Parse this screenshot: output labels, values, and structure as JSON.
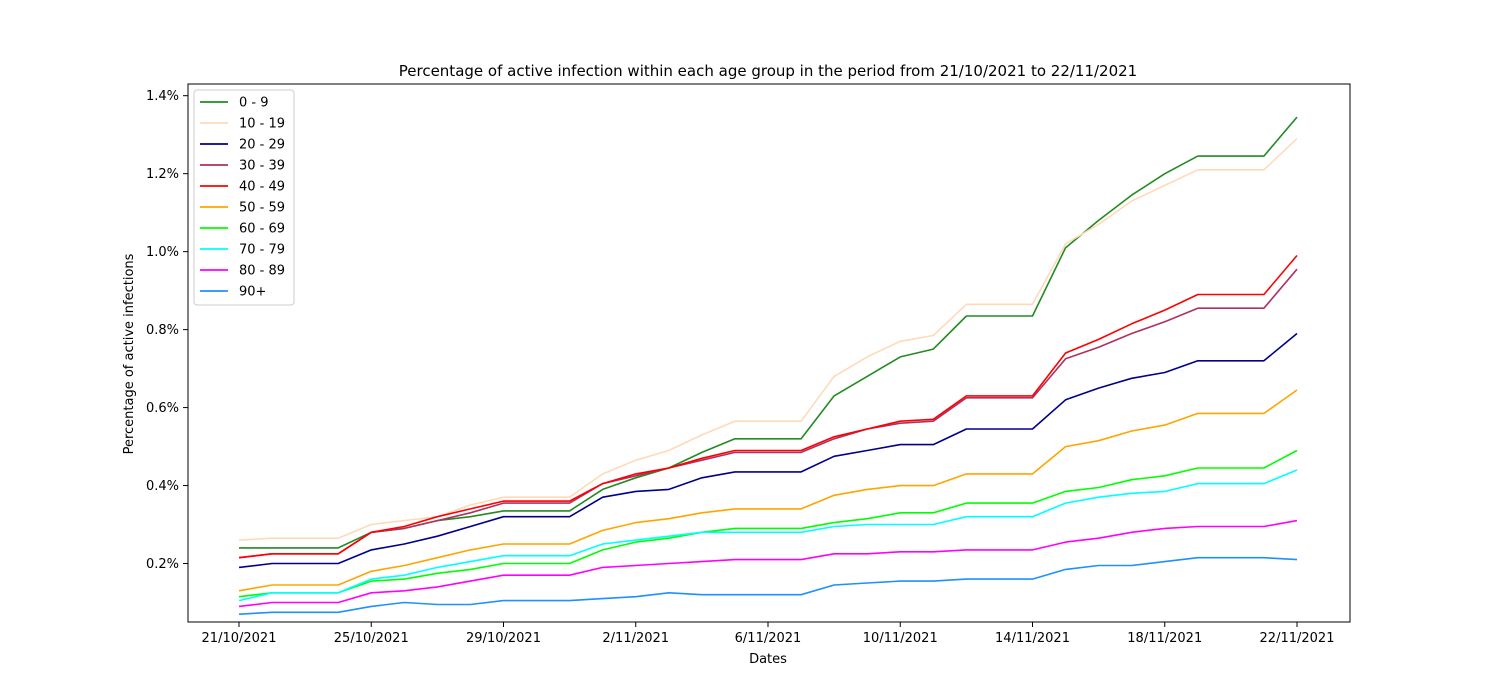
{
  "chart_data": {
    "type": "line",
    "title": "Percentage of active infection within each age group in the period from 21/10/2021 to 22/11/2021",
    "xlabel": "Dates",
    "ylabel": "Percentage of active infections",
    "x": [
      "21/10/2021",
      "22/10/2021",
      "23/10/2021",
      "24/10/2021",
      "25/10/2021",
      "26/10/2021",
      "27/10/2021",
      "28/10/2021",
      "29/10/2021",
      "30/10/2021",
      "31/10/2021",
      "1/11/2021",
      "2/11/2021",
      "3/11/2021",
      "4/11/2021",
      "5/11/2021",
      "6/11/2021",
      "7/11/2021",
      "8/11/2021",
      "9/11/2021",
      "10/11/2021",
      "11/11/2021",
      "12/11/2021",
      "13/11/2021",
      "14/11/2021",
      "15/11/2021",
      "16/11/2021",
      "17/11/2021",
      "18/11/2021",
      "19/11/2021",
      "20/11/2021",
      "21/11/2021",
      "22/11/2021"
    ],
    "xticks": [
      "21/10/2021",
      "25/10/2021",
      "29/10/2021",
      "2/11/2021",
      "6/11/2021",
      "10/11/2021",
      "14/11/2021",
      "18/11/2021",
      "22/11/2021"
    ],
    "yticks": [
      0.2,
      0.4,
      0.6,
      0.8,
      1.0,
      1.2,
      1.4
    ],
    "ytick_labels": [
      "0.2%",
      "0.4%",
      "0.6%",
      "0.8%",
      "1.0%",
      "1.2%",
      "1.4%"
    ],
    "ylim": [
      0.05,
      1.43
    ],
    "legend_position": "upper-left",
    "grid": false,
    "series": [
      {
        "name": "0 - 9",
        "color": "#228B22",
        "values": [
          0.24,
          0.24,
          0.24,
          0.24,
          0.28,
          0.29,
          0.31,
          0.32,
          0.335,
          0.335,
          0.335,
          0.39,
          0.42,
          0.445,
          0.485,
          0.52,
          0.52,
          0.52,
          0.63,
          0.68,
          0.73,
          0.75,
          0.835,
          0.835,
          0.835,
          1.01,
          1.08,
          1.145,
          1.2,
          1.245,
          1.245,
          1.245,
          1.345
        ]
      },
      {
        "name": "10 - 19",
        "color": "#FFDAB9",
        "values": [
          0.26,
          0.265,
          0.265,
          0.265,
          0.3,
          0.31,
          0.32,
          0.35,
          0.37,
          0.37,
          0.37,
          0.43,
          0.465,
          0.49,
          0.53,
          0.565,
          0.565,
          0.565,
          0.68,
          0.73,
          0.77,
          0.785,
          0.865,
          0.865,
          0.865,
          1.02,
          1.07,
          1.13,
          1.17,
          1.21,
          1.21,
          1.21,
          1.29
        ]
      },
      {
        "name": "20 - 29",
        "color": "#00008B",
        "values": [
          0.19,
          0.2,
          0.2,
          0.2,
          0.235,
          0.25,
          0.27,
          0.295,
          0.32,
          0.32,
          0.32,
          0.37,
          0.385,
          0.39,
          0.42,
          0.435,
          0.435,
          0.435,
          0.475,
          0.49,
          0.505,
          0.505,
          0.545,
          0.545,
          0.545,
          0.62,
          0.65,
          0.675,
          0.69,
          0.72,
          0.72,
          0.72,
          0.79
        ]
      },
      {
        "name": "30 - 39",
        "color": "#B03060",
        "values": [
          0.215,
          0.225,
          0.225,
          0.225,
          0.28,
          0.29,
          0.31,
          0.33,
          0.355,
          0.355,
          0.355,
          0.405,
          0.425,
          0.445,
          0.465,
          0.485,
          0.485,
          0.485,
          0.52,
          0.545,
          0.56,
          0.565,
          0.625,
          0.625,
          0.625,
          0.725,
          0.755,
          0.79,
          0.82,
          0.855,
          0.855,
          0.855,
          0.955
        ]
      },
      {
        "name": "40 - 49",
        "color": "#FF0000",
        "values": [
          0.215,
          0.225,
          0.225,
          0.225,
          0.28,
          0.295,
          0.32,
          0.34,
          0.36,
          0.36,
          0.36,
          0.405,
          0.43,
          0.445,
          0.47,
          0.49,
          0.49,
          0.49,
          0.525,
          0.545,
          0.565,
          0.57,
          0.63,
          0.63,
          0.63,
          0.74,
          0.775,
          0.815,
          0.85,
          0.89,
          0.89,
          0.89,
          0.99
        ]
      },
      {
        "name": "50 - 59",
        "color": "#FFA500",
        "values": [
          0.13,
          0.145,
          0.145,
          0.145,
          0.18,
          0.195,
          0.215,
          0.235,
          0.25,
          0.25,
          0.25,
          0.285,
          0.305,
          0.315,
          0.33,
          0.34,
          0.34,
          0.34,
          0.375,
          0.39,
          0.4,
          0.4,
          0.43,
          0.43,
          0.43,
          0.5,
          0.515,
          0.54,
          0.555,
          0.585,
          0.585,
          0.585,
          0.645
        ]
      },
      {
        "name": "60 - 69",
        "color": "#00FF00",
        "values": [
          0.115,
          0.125,
          0.125,
          0.125,
          0.155,
          0.16,
          0.175,
          0.185,
          0.2,
          0.2,
          0.2,
          0.235,
          0.255,
          0.265,
          0.28,
          0.29,
          0.29,
          0.29,
          0.305,
          0.315,
          0.33,
          0.33,
          0.355,
          0.355,
          0.355,
          0.385,
          0.395,
          0.415,
          0.425,
          0.445,
          0.445,
          0.445,
          0.49
        ]
      },
      {
        "name": "70 - 79",
        "color": "#00FFFF",
        "values": [
          0.105,
          0.125,
          0.125,
          0.125,
          0.16,
          0.17,
          0.19,
          0.205,
          0.22,
          0.22,
          0.22,
          0.25,
          0.26,
          0.27,
          0.28,
          0.28,
          0.28,
          0.28,
          0.295,
          0.3,
          0.3,
          0.3,
          0.32,
          0.32,
          0.32,
          0.355,
          0.37,
          0.38,
          0.385,
          0.405,
          0.405,
          0.405,
          0.44
        ]
      },
      {
        "name": "80 - 89",
        "color": "#FF00FF",
        "values": [
          0.09,
          0.1,
          0.1,
          0.1,
          0.125,
          0.13,
          0.14,
          0.155,
          0.17,
          0.17,
          0.17,
          0.19,
          0.195,
          0.2,
          0.205,
          0.21,
          0.21,
          0.21,
          0.225,
          0.225,
          0.23,
          0.23,
          0.235,
          0.235,
          0.235,
          0.255,
          0.265,
          0.28,
          0.29,
          0.295,
          0.295,
          0.295,
          0.31
        ]
      },
      {
        "name": "90+",
        "color": "#1E90FF",
        "values": [
          0.07,
          0.075,
          0.075,
          0.075,
          0.09,
          0.1,
          0.095,
          0.095,
          0.105,
          0.105,
          0.105,
          0.11,
          0.115,
          0.125,
          0.12,
          0.12,
          0.12,
          0.12,
          0.145,
          0.15,
          0.155,
          0.155,
          0.16,
          0.16,
          0.16,
          0.185,
          0.195,
          0.195,
          0.205,
          0.215,
          0.215,
          0.215,
          0.21
        ]
      }
    ]
  }
}
